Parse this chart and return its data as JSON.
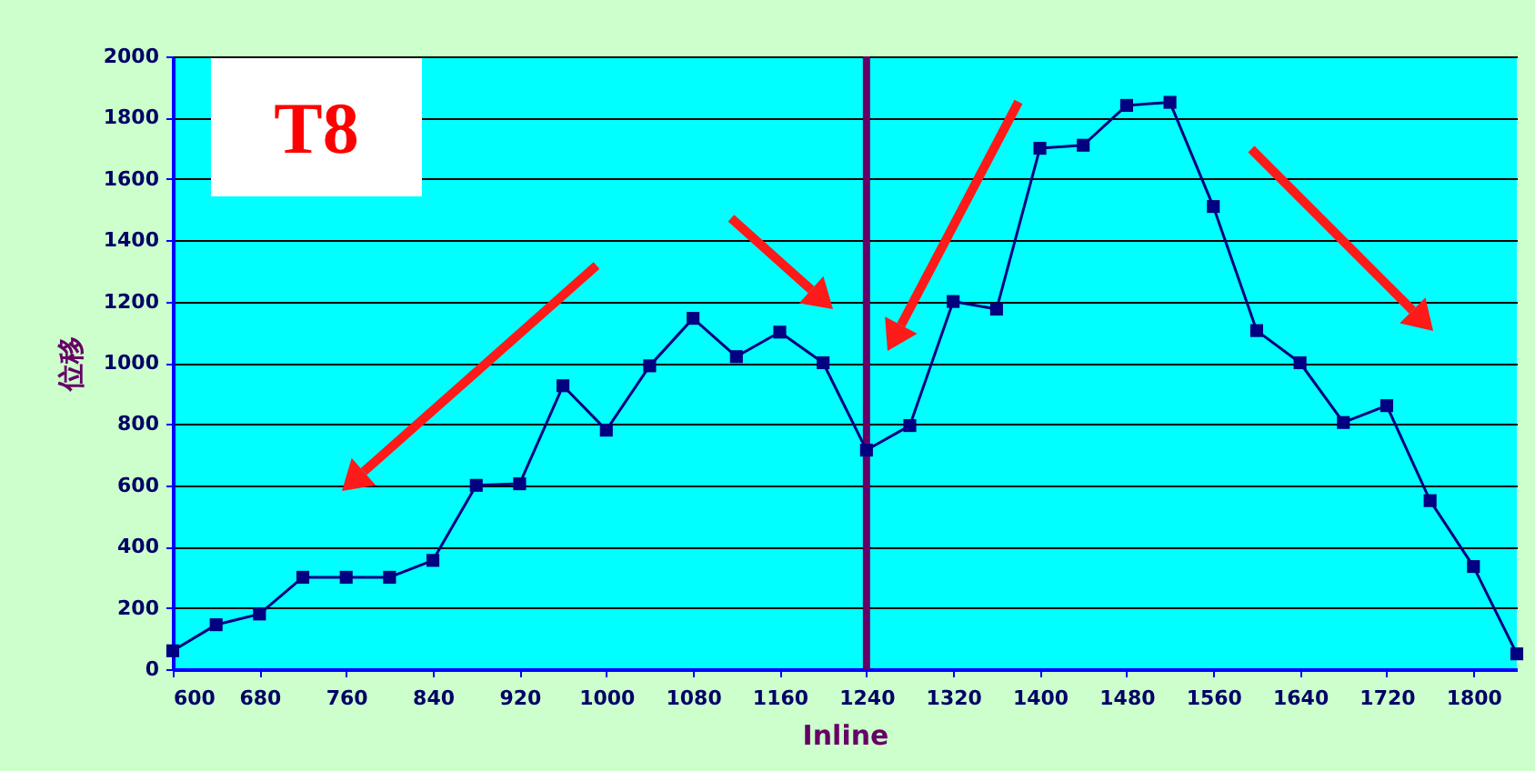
{
  "chart_data": {
    "type": "line",
    "xlabel": "Inline",
    "ylabel": "位移",
    "annotations": [
      "T8"
    ],
    "x": [
      600,
      640,
      680,
      720,
      760,
      800,
      840,
      880,
      920,
      960,
      1000,
      1040,
      1080,
      1120,
      1160,
      1200,
      1240,
      1280,
      1320,
      1360,
      1400,
      1440,
      1480,
      1520,
      1560,
      1600,
      1640,
      1680,
      1720,
      1760,
      1800,
      1840
    ],
    "series": [
      {
        "color": "#000080",
        "values": [
          60,
          145,
          180,
          300,
          300,
          300,
          355,
          600,
          605,
          925,
          780,
          990,
          1145,
          1020,
          1100,
          1000,
          715,
          795,
          1200,
          1175,
          1700,
          1710,
          1840,
          1850,
          1510,
          1105,
          1000,
          805,
          860,
          550,
          335,
          50
        ]
      }
    ],
    "xlim": [
      600,
      1840
    ],
    "xticks": [
      600,
      680,
      760,
      840,
      920,
      1000,
      1080,
      1160,
      1240,
      1320,
      1400,
      1480,
      1560,
      1640,
      1720,
      1800
    ],
    "ylim": [
      0,
      2000
    ],
    "yticks": [
      0,
      200,
      400,
      600,
      800,
      1000,
      1200,
      1400,
      1600,
      1800,
      2000
    ],
    "ref_lines": [
      {
        "axis": "x",
        "value": 1240,
        "color": "#660066"
      }
    ],
    "grid": "y",
    "marker": "square",
    "line_style": "solid"
  }
}
